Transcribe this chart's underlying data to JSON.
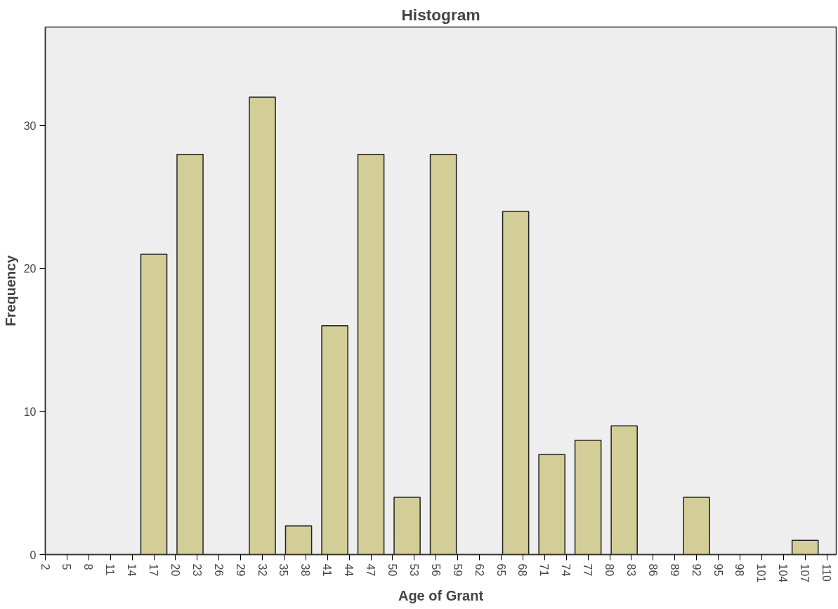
{
  "chart_data": {
    "type": "bar",
    "title": "Histogram",
    "xlabel": "Age of Grant",
    "ylabel": "Frequency",
    "x": [
      17,
      22,
      27,
      32,
      37,
      42,
      47,
      52,
      57,
      62,
      67,
      72,
      77,
      82,
      87,
      92,
      97,
      102,
      107
    ],
    "values": [
      21,
      28,
      0,
      32,
      2,
      16,
      28,
      4,
      28,
      0,
      24,
      7,
      8,
      9,
      0,
      4,
      0,
      0,
      1
    ],
    "color": "#d3ce97",
    "xlim": [
      2,
      111.3
    ],
    "xticks": [
      2,
      5,
      8,
      11,
      14,
      17,
      20,
      23,
      26,
      29,
      32,
      35,
      38,
      41,
      44,
      47,
      50,
      53,
      56,
      59,
      62,
      65,
      68,
      71,
      74,
      77,
      80,
      83,
      86,
      89,
      92,
      95,
      98,
      101,
      104,
      107,
      110
    ],
    "ylim": [
      0,
      36.9
    ],
    "yticks": [
      0,
      10,
      20,
      30
    ],
    "grid": false
  }
}
